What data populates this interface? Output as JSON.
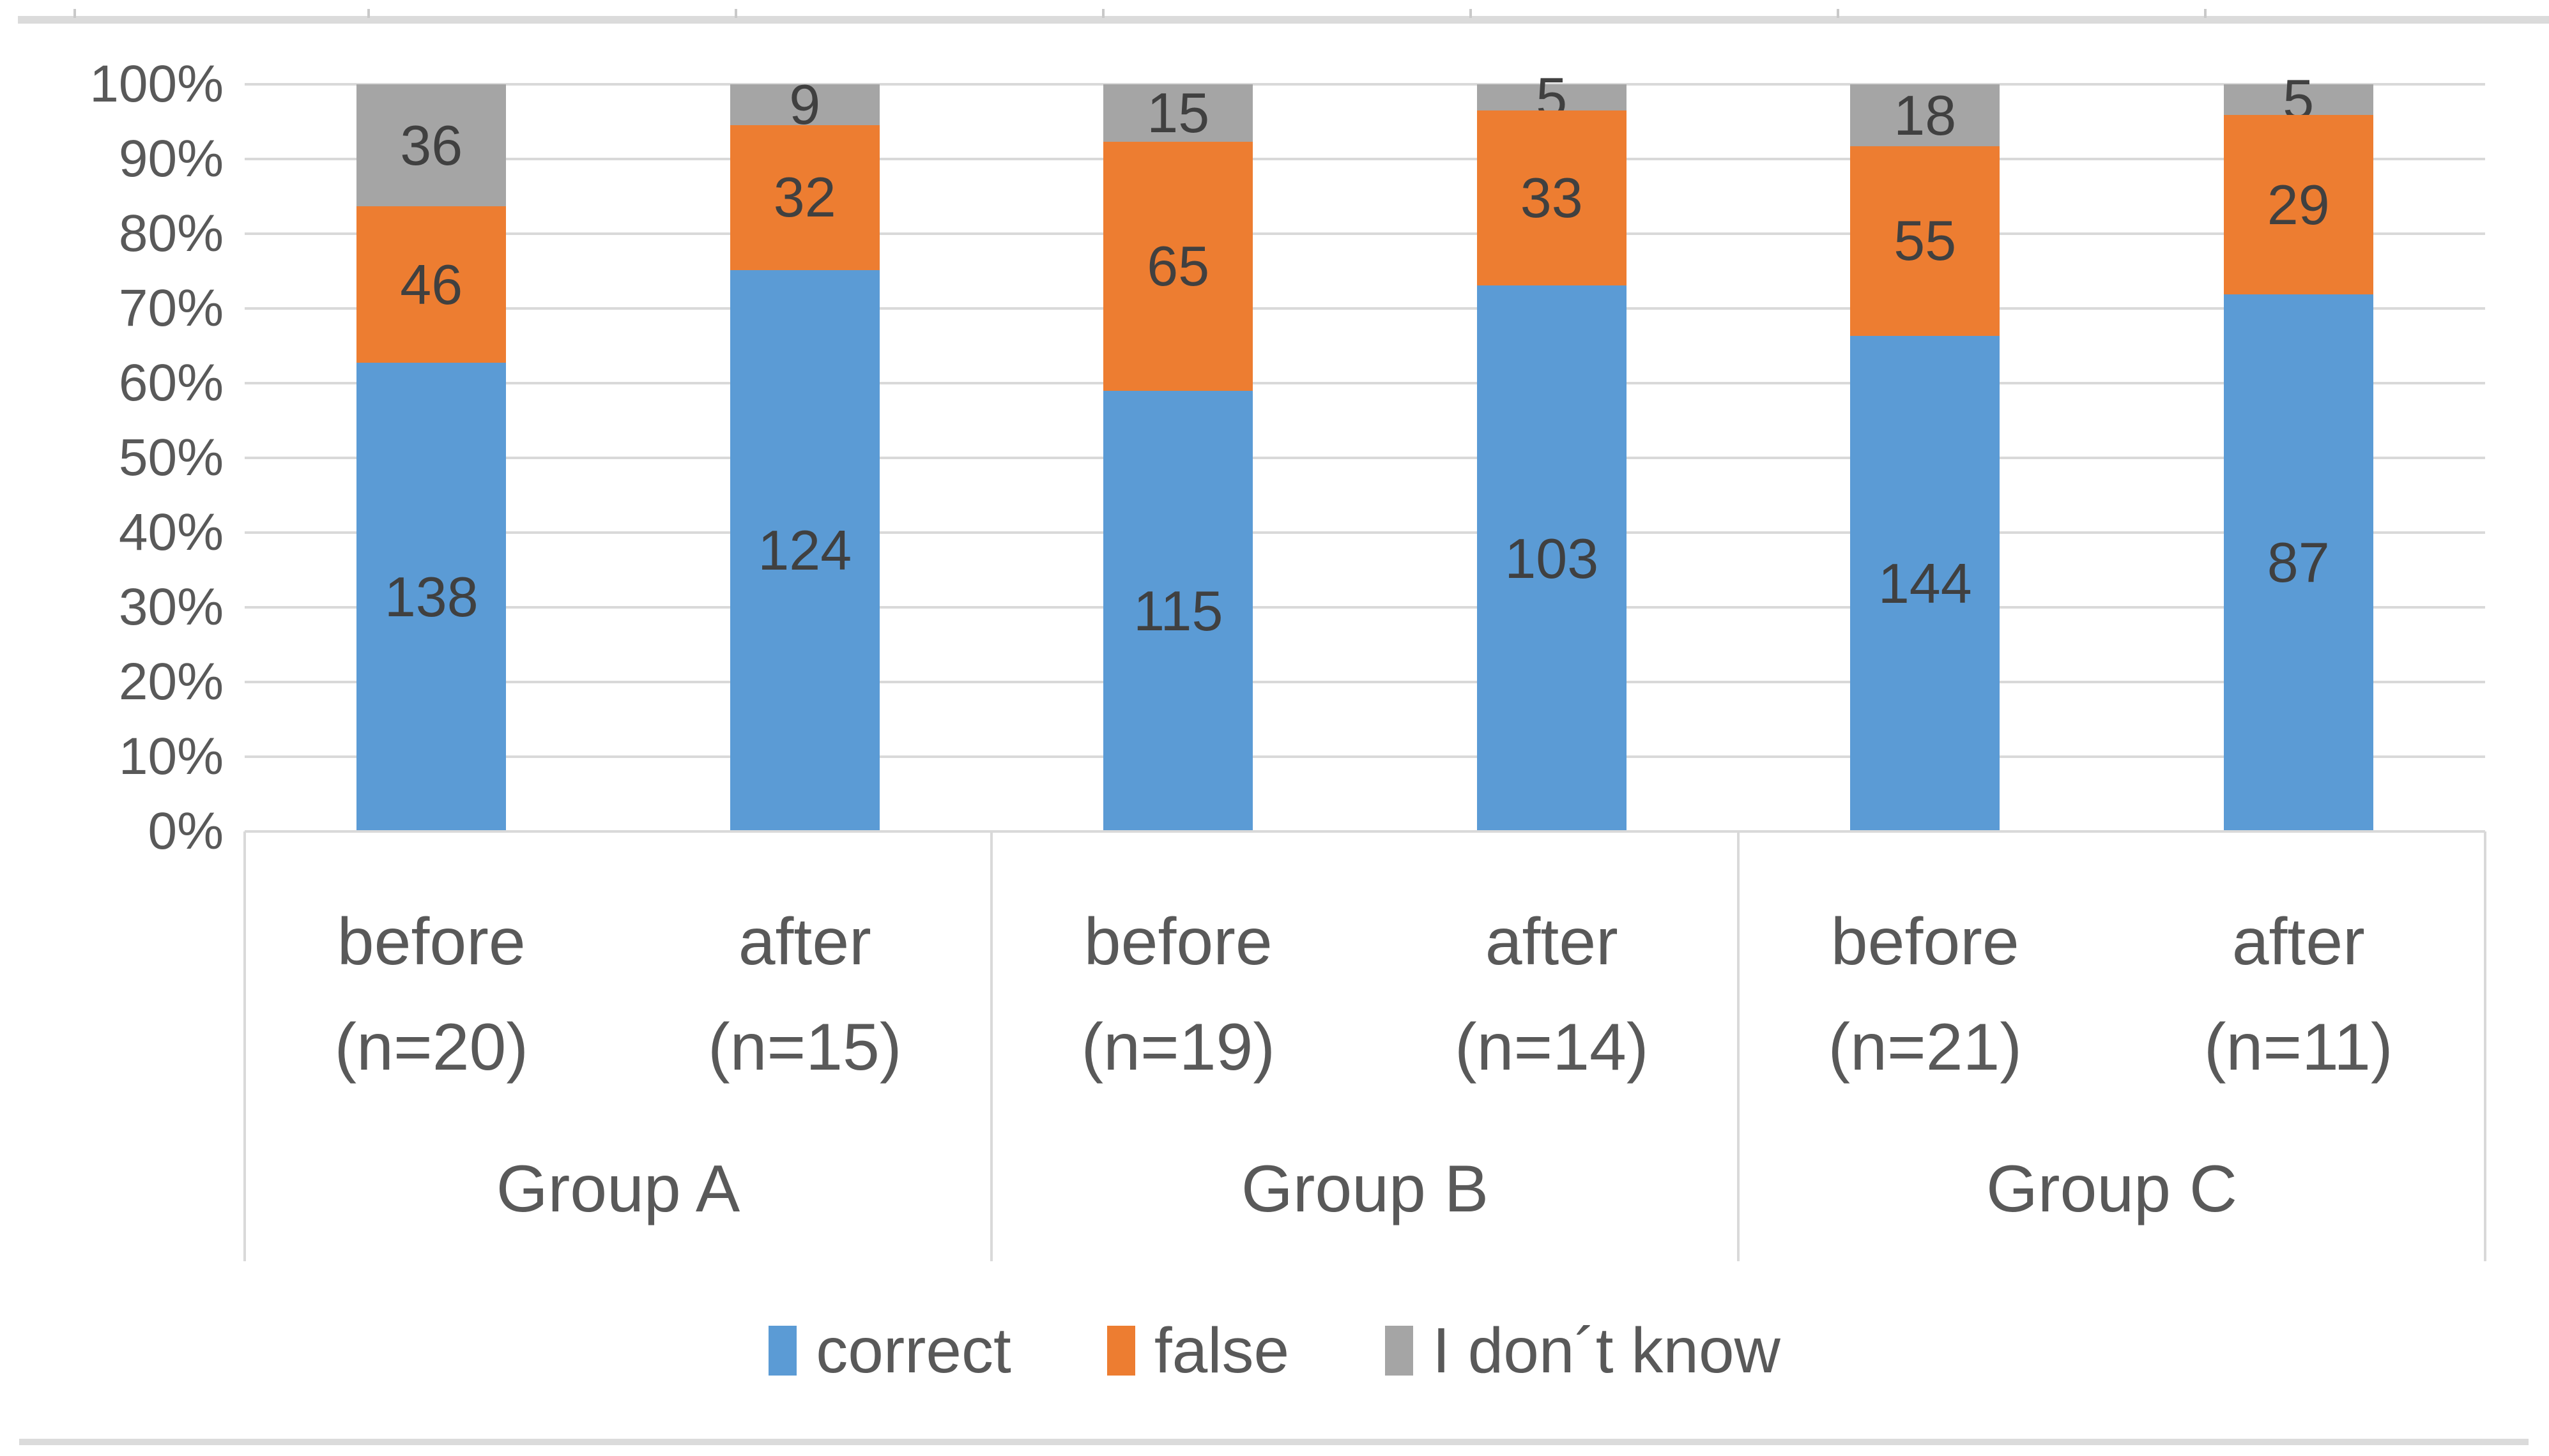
{
  "page": {
    "background": "#ffffff",
    "top_edge_strip": {
      "color": "#dbdbdb",
      "tick_color": "#c9c9c9",
      "tick_positions_x": [
        115,
        575,
        1150,
        1725,
        2300,
        2875,
        3450
      ]
    },
    "bottom_edge_strip": {
      "color": "#dbdbdb"
    }
  },
  "chart_data": {
    "type": "bar",
    "variant": "stacked-100-percent-column",
    "title": "",
    "xlabel": "",
    "ylabel": "",
    "grid": true,
    "legend_position": "bottom",
    "y_axis": {
      "min": 0,
      "max": 100,
      "step": 10,
      "tick_labels": [
        "100%",
        "90%",
        "80%",
        "70%",
        "60%",
        "50%",
        "40%",
        "30%",
        "20%",
        "10%",
        "0%"
      ]
    },
    "categories": [
      {
        "label": "before",
        "sublabel": "(n=20)",
        "group": "Group A"
      },
      {
        "label": "after",
        "sublabel": "(n=15)",
        "group": "Group A"
      },
      {
        "label": "before",
        "sublabel": "(n=19)",
        "group": "Group B"
      },
      {
        "label": "after",
        "sublabel": "(n=14)",
        "group": "Group B"
      },
      {
        "label": "before",
        "sublabel": "(n=21)",
        "group": "Group C"
      },
      {
        "label": "after",
        "sublabel": "(n=11)",
        "group": "Group C"
      }
    ],
    "group_labels": [
      "Group A",
      "Group B",
      "Group C"
    ],
    "series": [
      {
        "name": "correct",
        "color": "#5B9BD5",
        "values": [
          138,
          124,
          115,
          103,
          144,
          87
        ]
      },
      {
        "name": "false",
        "color": "#ED7D31",
        "values": [
          46,
          32,
          65,
          33,
          55,
          29
        ]
      },
      {
        "name": "I don´t know",
        "color": "#A5A5A5",
        "values": [
          36,
          9,
          15,
          5,
          18,
          5
        ]
      }
    ],
    "colors": {
      "gridline": "#d9d9d9",
      "axis_text": "#595959",
      "data_label_text": "#404040",
      "band_border": "#d9d9d9"
    }
  }
}
